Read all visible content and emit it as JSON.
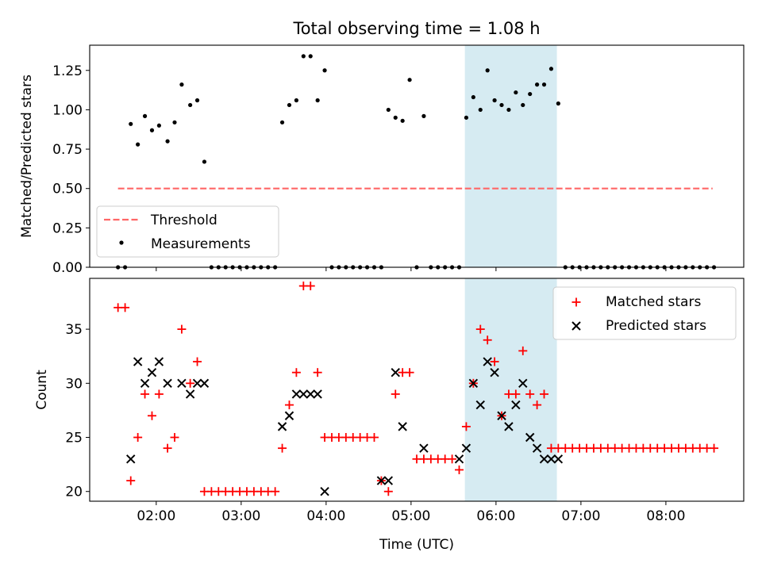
{
  "chart_data": [
    {
      "type": "scatter",
      "title": "Total observing time = 1.08 h",
      "xlabel": "",
      "ylabel": "Matched/Predicted stars",
      "xlim": [
        "01:13",
        "08:55"
      ],
      "ylim": [
        0,
        1.41
      ],
      "x_ticks": [
        "02:00",
        "03:00",
        "04:00",
        "05:00",
        "06:00",
        "07:00",
        "08:00"
      ],
      "x_ticks_labeled": false,
      "y_ticks": [
        "0.00",
        "0.25",
        "0.50",
        "0.75",
        "1.00",
        "1.25"
      ],
      "grid": false,
      "legend_position": "lower-left",
      "highlight_band": {
        "x_start": "05:38",
        "x_end": "06:43",
        "color": "#add8e6"
      },
      "threshold": {
        "name": "Threshold",
        "y": 0.5,
        "x_start": "01:33",
        "x_end": "08:33",
        "color": "#ff6666",
        "style": "dashed"
      },
      "series": [
        {
          "name": "Measurements",
          "color": "#000000",
          "x": [
            "01:33",
            "01:38",
            "01:42",
            "01:47",
            "01:52",
            "01:57",
            "02:02",
            "02:08",
            "02:13",
            "02:18",
            "02:24",
            "02:29",
            "02:34",
            "02:39",
            "02:44",
            "02:49",
            "02:54",
            "02:59",
            "03:04",
            "03:09",
            "03:14",
            "03:19",
            "03:24",
            "03:29",
            "03:34",
            "03:39",
            "03:44",
            "03:49",
            "03:54",
            "03:59",
            "04:04",
            "04:09",
            "04:14",
            "04:19",
            "04:24",
            "04:29",
            "04:34",
            "04:39",
            "04:44",
            "04:49",
            "04:54",
            "04:59",
            "05:04",
            "05:09",
            "05:14",
            "05:19",
            "05:24",
            "05:29",
            "05:34",
            "05:39",
            "05:44",
            "05:49",
            "05:54",
            "05:59",
            "06:04",
            "06:09",
            "06:14",
            "06:19",
            "06:24",
            "06:29",
            "06:34",
            "06:39",
            "06:44",
            "06:49",
            "06:54",
            "06:59",
            "07:04",
            "07:09",
            "07:14",
            "07:19",
            "07:24",
            "07:29",
            "07:34",
            "07:39",
            "07:44",
            "07:49",
            "07:54",
            "07:59",
            "08:04",
            "08:09",
            "08:14",
            "08:19",
            "08:24",
            "08:29",
            "08:34"
          ],
          "y": [
            0,
            0,
            0.91,
            0.78,
            0.96,
            0.87,
            0.9,
            0.8,
            0.92,
            1.16,
            1.03,
            1.06,
            0.67,
            0,
            0,
            0,
            0,
            0,
            0,
            0,
            0,
            0,
            0,
            0.92,
            1.03,
            1.06,
            1.34,
            1.34,
            1.06,
            1.25,
            0,
            0,
            0,
            0,
            0,
            0,
            0,
            0,
            1.0,
            0.95,
            0.93,
            1.19,
            0,
            0.96,
            0,
            0,
            0,
            0,
            0,
            0.95,
            1.08,
            1.0,
            1.25,
            1.06,
            1.03,
            1.0,
            1.11,
            1.03,
            1.1,
            1.16,
            1.16,
            1.26,
            1.04,
            0,
            0,
            0,
            0,
            0,
            0,
            0,
            0,
            0,
            0,
            0,
            0,
            0,
            0,
            0,
            0,
            0,
            0,
            0,
            0,
            0,
            0
          ]
        }
      ]
    },
    {
      "type": "scatter",
      "title": "",
      "xlabel": "Time (UTC)",
      "ylabel": "Count",
      "xlim": [
        "01:13",
        "08:55"
      ],
      "ylim": [
        19.1,
        39.7
      ],
      "x_ticks": [
        "02:00",
        "03:00",
        "04:00",
        "05:00",
        "06:00",
        "07:00",
        "08:00"
      ],
      "y_ticks": [
        "20",
        "25",
        "30",
        "35"
      ],
      "grid": false,
      "legend_position": "top-right",
      "highlight_band": {
        "x_start": "05:38",
        "x_end": "06:43",
        "color": "#add8e6"
      },
      "series": [
        {
          "name": "Matched stars",
          "marker": "+",
          "color": "#ff0000",
          "x": [
            "01:33",
            "01:38",
            "01:42",
            "01:47",
            "01:52",
            "01:57",
            "02:02",
            "02:08",
            "02:13",
            "02:18",
            "02:24",
            "02:29",
            "02:34",
            "02:39",
            "02:44",
            "02:49",
            "02:54",
            "02:59",
            "03:04",
            "03:09",
            "03:14",
            "03:19",
            "03:24",
            "03:29",
            "03:34",
            "03:39",
            "03:44",
            "03:49",
            "03:54",
            "03:59",
            "04:04",
            "04:09",
            "04:14",
            "04:19",
            "04:24",
            "04:29",
            "04:34",
            "04:39",
            "04:44",
            "04:49",
            "04:54",
            "04:59",
            "05:04",
            "05:09",
            "05:14",
            "05:19",
            "05:24",
            "05:29",
            "05:34",
            "05:39",
            "05:44",
            "05:49",
            "05:54",
            "05:59",
            "06:04",
            "06:09",
            "06:14",
            "06:19",
            "06:24",
            "06:29",
            "06:34",
            "06:39",
            "06:44",
            "06:49",
            "06:54",
            "06:59",
            "07:04",
            "07:09",
            "07:14",
            "07:19",
            "07:24",
            "07:29",
            "07:34",
            "07:39",
            "07:44",
            "07:49",
            "07:54",
            "07:59",
            "08:04",
            "08:09",
            "08:14",
            "08:19",
            "08:24",
            "08:29",
            "08:34"
          ],
          "y": [
            37,
            37,
            21,
            25,
            29,
            27,
            29,
            24,
            25,
            35,
            30,
            32,
            20,
            20,
            20,
            20,
            20,
            20,
            20,
            20,
            20,
            20,
            20,
            24,
            28,
            31,
            39,
            39,
            31,
            25,
            25,
            25,
            25,
            25,
            25,
            25,
            25,
            21,
            20,
            29,
            31,
            31,
            23,
            23,
            23,
            23,
            23,
            23,
            22,
            26,
            30,
            35,
            34,
            32,
            27,
            29,
            29,
            33,
            29,
            28,
            29,
            24,
            24,
            24,
            24,
            24,
            24,
            24,
            24,
            24,
            24,
            24,
            24,
            24,
            24,
            24,
            24,
            24,
            24,
            24,
            24,
            24,
            24,
            24,
            24
          ]
        },
        {
          "name": "Predicted stars",
          "marker": "x",
          "color": "#000000",
          "x": [
            "01:42",
            "01:47",
            "01:52",
            "01:57",
            "02:02",
            "02:08",
            "02:18",
            "02:24",
            "02:29",
            "02:34",
            "03:29",
            "03:34",
            "03:39",
            "03:44",
            "03:49",
            "03:54",
            "03:59",
            "04:39",
            "04:44",
            "04:49",
            "04:54",
            "05:09",
            "05:34",
            "05:39",
            "05:44",
            "05:49",
            "05:54",
            "05:59",
            "06:04",
            "06:09",
            "06:14",
            "06:19",
            "06:24",
            "06:29",
            "06:34",
            "06:39",
            "06:44"
          ],
          "y": [
            23,
            32,
            30,
            31,
            32,
            30,
            30,
            29,
            30,
            30,
            26,
            27,
            29,
            29,
            29,
            29,
            20,
            21,
            21,
            31,
            26,
            24,
            23,
            24,
            30,
            28,
            32,
            31,
            27,
            26,
            28,
            30,
            25,
            24,
            23,
            23,
            23
          ]
        }
      ]
    }
  ]
}
